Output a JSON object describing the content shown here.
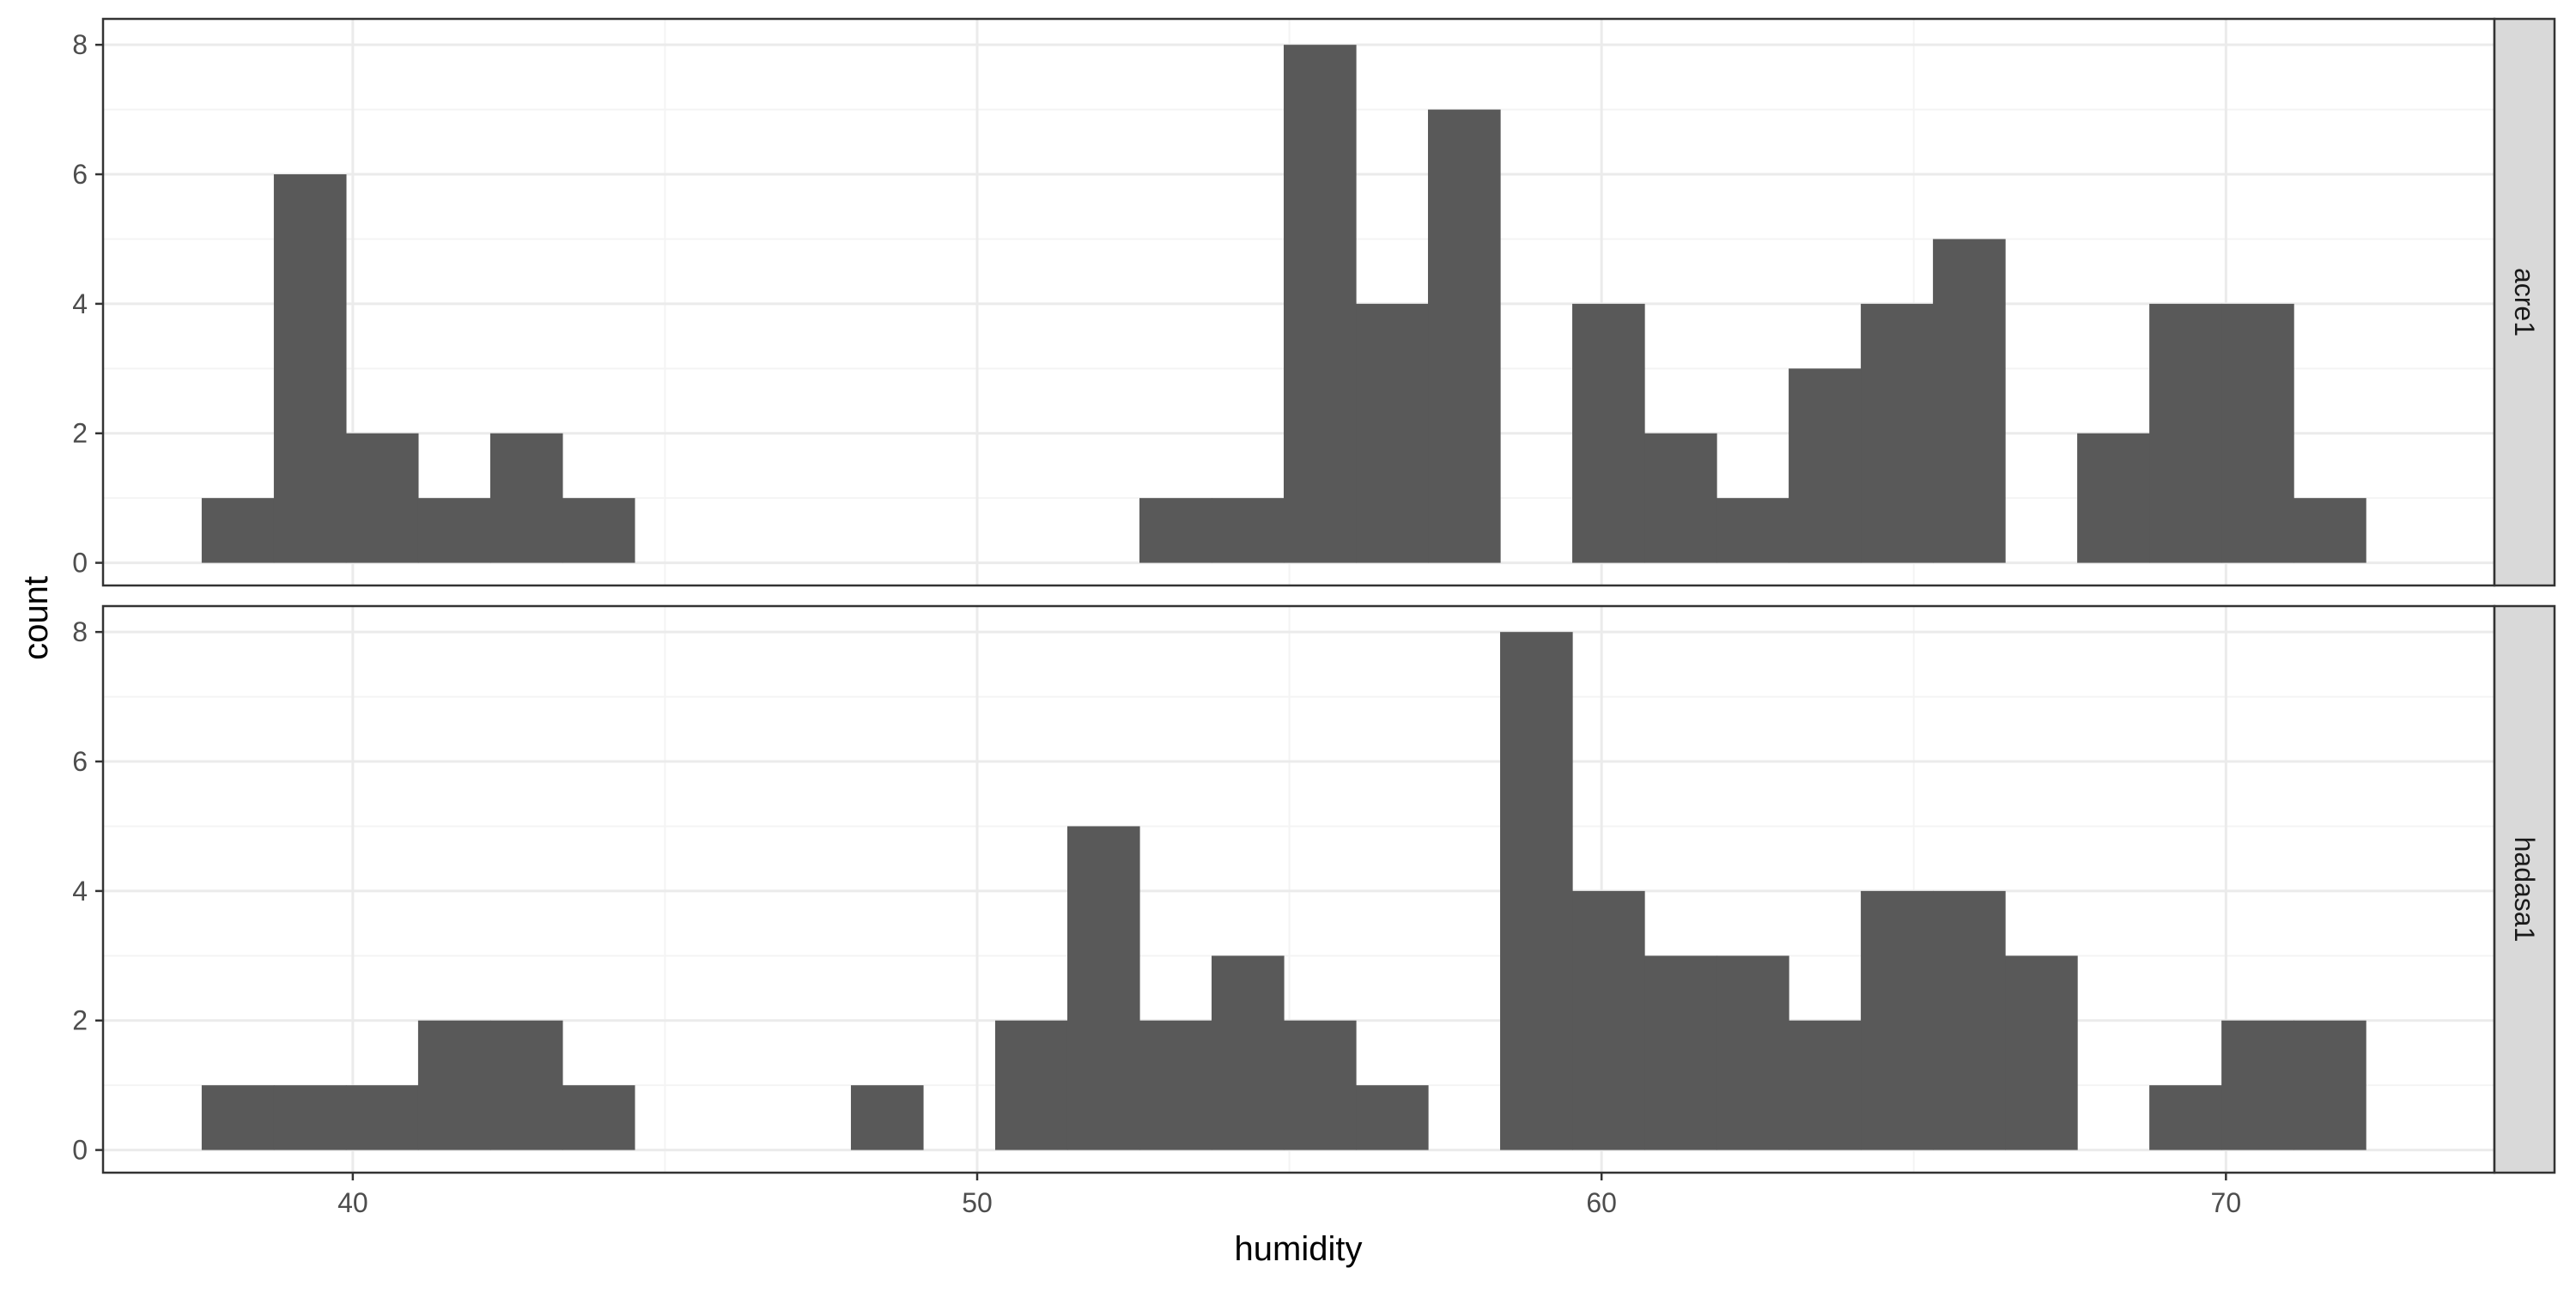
{
  "chart_data": {
    "type": "bar",
    "subtype": "histogram",
    "xlabel": "humidity",
    "ylabel": "count",
    "xlim": [
      36,
      74.3
    ],
    "x_ticks": [
      40,
      50,
      60,
      70
    ],
    "x_tick_labels": [
      "40",
      "50",
      "60",
      "70"
    ],
    "ylim": [
      -0.35,
      8.4
    ],
    "y_ticks": [
      0,
      2,
      4,
      6,
      8
    ],
    "y_tick_labels": [
      "0",
      "2",
      "4",
      "6",
      "8"
    ],
    "bin_start": 37.58,
    "bin_width": 1.1553,
    "grid": true,
    "colors": {
      "bar": "#595959",
      "strip": "#d9d9d9",
      "grid_major": "#ebebeb",
      "grid_minor": "#f4f4f4",
      "frame": "#333333"
    },
    "facets": [
      {
        "label": "acre1",
        "counts": [
          1,
          6,
          2,
          1,
          2,
          1,
          0,
          0,
          0,
          0,
          0,
          0,
          0,
          1,
          1,
          8,
          4,
          7,
          0,
          4,
          2,
          1,
          3,
          4,
          5,
          0,
          2,
          4,
          4,
          1,
          0,
          0,
          0,
          0,
          0,
          0,
          0,
          0,
          0,
          0
        ]
      },
      {
        "label": "hadasa1",
        "counts": [
          1,
          1,
          1,
          2,
          2,
          1,
          0,
          0,
          0,
          1,
          0,
          2,
          5,
          2,
          3,
          2,
          1,
          0,
          8,
          4,
          3,
          3,
          2,
          4,
          4,
          3,
          0,
          1,
          2,
          2,
          0,
          0,
          0,
          0,
          0,
          0,
          0,
          0,
          0,
          0
        ]
      }
    ]
  }
}
